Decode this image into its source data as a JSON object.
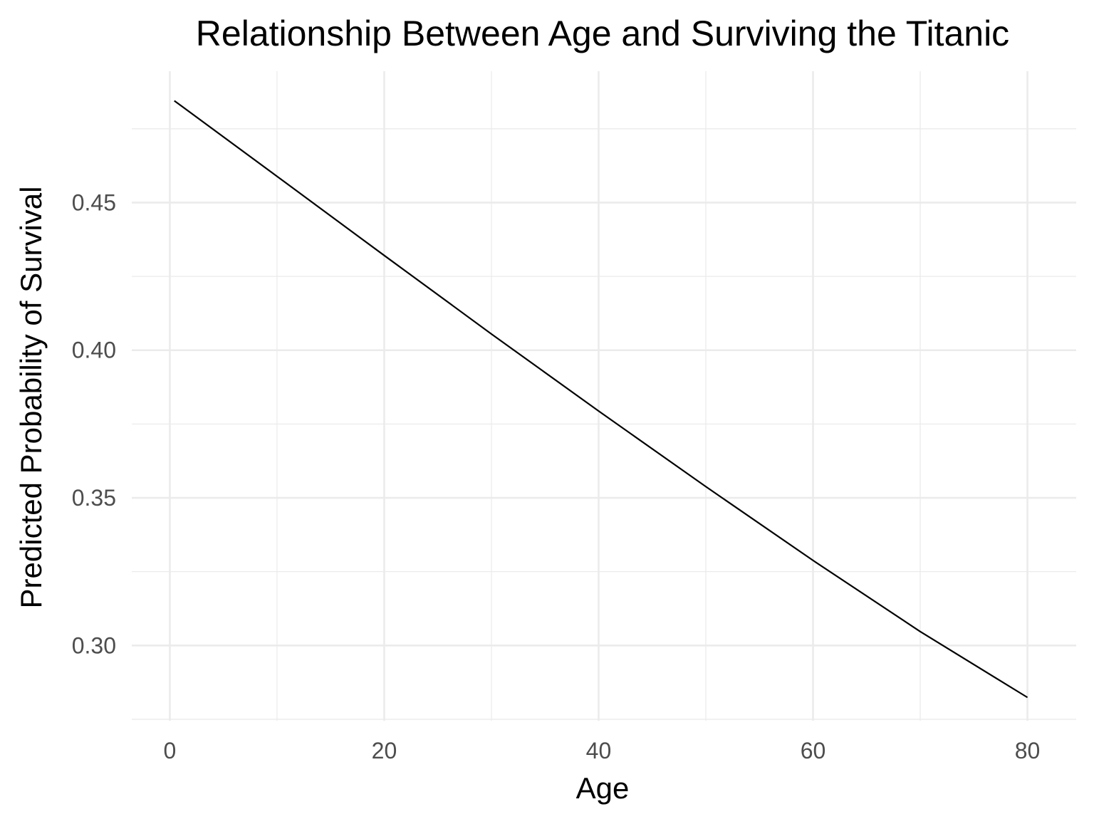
{
  "chart_data": {
    "type": "line",
    "title": "Relationship Between Age and Surviving the Titanic",
    "xlabel": "Age",
    "ylabel": "Predicted Probability of Survival",
    "xlim": [
      -3.55,
      84.55
    ],
    "ylim": [
      0.2745,
      0.4945
    ],
    "x_major_ticks": [
      0,
      20,
      40,
      60,
      80
    ],
    "x_minor_ticks": [
      10,
      30,
      50,
      70
    ],
    "y_major_ticks": [
      0.3,
      0.35,
      0.4,
      0.45
    ],
    "y_minor_ticks": [
      0.275,
      0.325,
      0.375,
      0.425,
      0.475
    ],
    "x_tick_labels": [
      "0",
      "20",
      "40",
      "60",
      "80"
    ],
    "y_tick_labels": [
      "0.30",
      "0.35",
      "0.40",
      "0.45"
    ],
    "grid": true,
    "legend": "none",
    "series": [
      {
        "color": "#000000",
        "x": [
          0.42,
          10,
          20,
          30,
          40,
          50,
          60,
          70,
          80
        ],
        "y": [
          0.4845,
          0.4589,
          0.4321,
          0.4055,
          0.3794,
          0.3538,
          0.3288,
          0.3047,
          0.2824
        ]
      }
    ]
  }
}
